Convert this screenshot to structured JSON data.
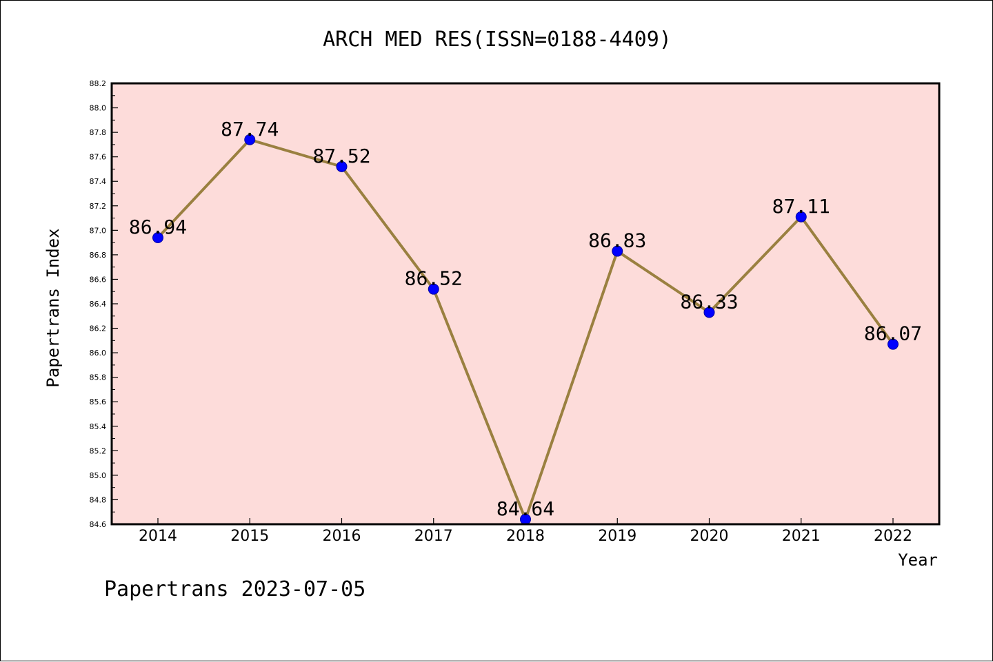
{
  "chart_data": {
    "type": "line",
    "title": "ARCH MED RES(ISSN=0188-4409)",
    "xlabel": "Year",
    "ylabel": "Papertrans Index",
    "footer": "Papertrans 2023-07-05",
    "categories": [
      "2014",
      "2015",
      "2016",
      "2017",
      "2018",
      "2019",
      "2020",
      "2021",
      "2022"
    ],
    "series": [
      {
        "values": [
          86.94,
          87.74,
          87.52,
          86.52,
          84.64,
          86.83,
          86.33,
          87.11,
          86.07
        ],
        "data_labels": [
          "86.94",
          "87.74",
          "87.52",
          "86.52",
          "84.64",
          "86.83",
          "86.33",
          "87.11",
          "86.07"
        ]
      }
    ],
    "ylim": [
      84.6,
      88.2
    ],
    "yticks": [
      "84.6",
      "84.8",
      "85.0",
      "85.2",
      "85.4",
      "85.6",
      "85.8",
      "86.0",
      "86.2",
      "86.4",
      "86.6",
      "86.8",
      "87.0",
      "87.2",
      "87.4",
      "87.6",
      "87.8",
      "88.0",
      "88.2"
    ],
    "grid": false,
    "legend": "none",
    "colors": {
      "plot_background": "#fddcda",
      "line": "#9a8040",
      "marker": "#0000ff",
      "axis": "#000000"
    }
  }
}
